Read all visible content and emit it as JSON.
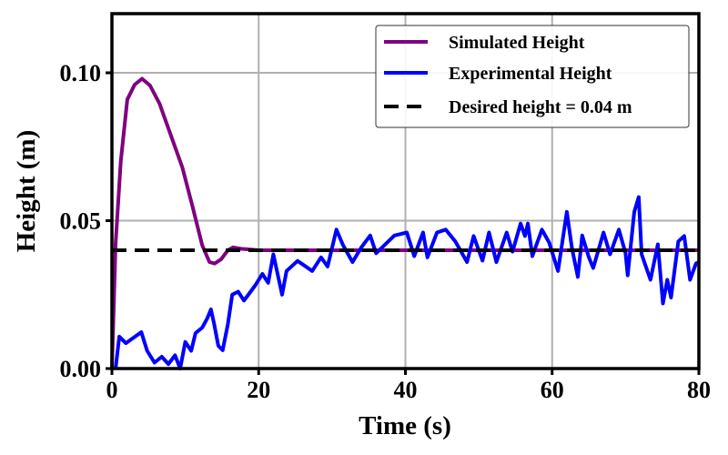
{
  "chart_data": {
    "type": "line",
    "title": "",
    "xlabel": "Time (s)",
    "ylabel": "Height (m)",
    "xlim": [
      0,
      80
    ],
    "ylim": [
      0,
      0.12
    ],
    "xticks": [
      0,
      20,
      40,
      60,
      80
    ],
    "xtick_labels": [
      "0",
      "20",
      "40",
      "60",
      "80"
    ],
    "yticks": [
      0,
      0.05,
      0.1
    ],
    "ytick_labels": [
      "0.00",
      "0.05",
      "0.10"
    ],
    "grid": true,
    "legend_position": "top-right",
    "series": [
      {
        "name": "Simulated Height",
        "color": "#800080",
        "style": "solid",
        "x": [
          0,
          0.5,
          1.2,
          2.1,
          3.1,
          4.1,
          5.2,
          6.5,
          8.3,
          9.6,
          11,
          12.3,
          13.3,
          14,
          14.9,
          15.8,
          16.5,
          17.6,
          20,
          30,
          40,
          50,
          60,
          70,
          80
        ],
        "y": [
          0,
          0.042,
          0.07,
          0.091,
          0.096,
          0.098,
          0.0957,
          0.0895,
          0.077,
          0.068,
          0.0546,
          0.0417,
          0.036,
          0.0355,
          0.037,
          0.04,
          0.041,
          0.0405,
          0.04,
          0.04,
          0.04,
          0.04,
          0.04,
          0.04,
          0.04
        ]
      },
      {
        "name": "Experimental Height",
        "color": "#0000ff",
        "style": "solid",
        "x": [
          0.5,
          1,
          1.9,
          4,
          4.8,
          5.8,
          6.8,
          7.7,
          8.6,
          9.3,
          10,
          10.8,
          11.4,
          12.3,
          13,
          13.5,
          13.9,
          14.5,
          15.1,
          15.8,
          16.4,
          17.2,
          18,
          18.9,
          19.5,
          20.5,
          21.3,
          22,
          23.2,
          23.8,
          25.3,
          27.3,
          28.5,
          29.4,
          30.6,
          31.5,
          32.8,
          34,
          35.2,
          36,
          38.5,
          40.2,
          41.2,
          42.4,
          43,
          44.3,
          45.5,
          46.8,
          48.4,
          49.3,
          50.5,
          51.4,
          52.4,
          53.8,
          54.6,
          55.7,
          56.3,
          56.7,
          57.3,
          58.6,
          59.6,
          60.8,
          62,
          62.7,
          63.5,
          64.1,
          65,
          65.6,
          67,
          67.9,
          69.1,
          70,
          70.3,
          71.2,
          71.8,
          72.2,
          73.4,
          74.4,
          75.1,
          75.7,
          76.2,
          77.2,
          78,
          78.8,
          79.6,
          80
        ],
        "y": [
          0,
          0.0108,
          0.0086,
          0.0123,
          0.006,
          0.002,
          0.004,
          0.0015,
          0.0045,
          0,
          0.009,
          0.006,
          0.012,
          0.0138,
          0.017,
          0.02,
          0.0154,
          0.0077,
          0.0062,
          0.015,
          0.025,
          0.026,
          0.023,
          0.026,
          0.028,
          0.032,
          0.029,
          0.0386,
          0.025,
          0.033,
          0.0364,
          0.033,
          0.0376,
          0.0345,
          0.047,
          0.0417,
          0.036,
          0.041,
          0.045,
          0.039,
          0.045,
          0.046,
          0.038,
          0.046,
          0.0376,
          0.046,
          0.047,
          0.043,
          0.036,
          0.0448,
          0.0365,
          0.046,
          0.036,
          0.046,
          0.0395,
          0.049,
          0.0448,
          0.049,
          0.038,
          0.047,
          0.0426,
          0.033,
          0.053,
          0.0407,
          0.031,
          0.045,
          0.0376,
          0.034,
          0.046,
          0.0386,
          0.047,
          0.039,
          0.0315,
          0.053,
          0.058,
          0.0386,
          0.03,
          0.042,
          0.022,
          0.03,
          0.024,
          0.043,
          0.0448,
          0.03,
          0.0355,
          0.036
        ]
      },
      {
        "name": "Desired height = 0.04 m",
        "color": "#000000",
        "style": "dashed",
        "x": [
          0,
          80
        ],
        "y": [
          0.04,
          0.04
        ]
      }
    ]
  }
}
